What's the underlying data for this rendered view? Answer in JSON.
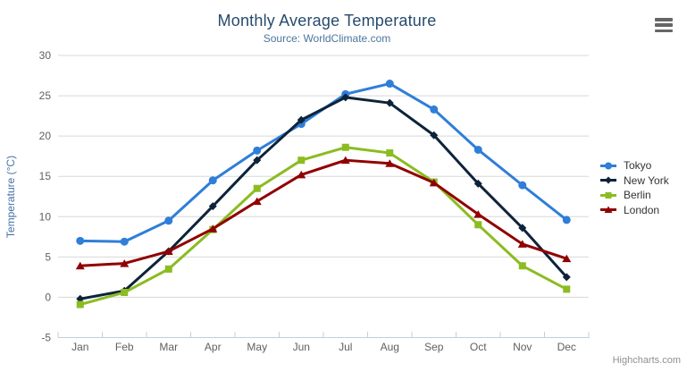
{
  "chart_data": {
    "type": "line",
    "title": "Monthly Average Temperature",
    "subtitle": "Source: WorldClimate.com",
    "xlabel": "",
    "ylabel": "Temperature (°C)",
    "categories": [
      "Jan",
      "Feb",
      "Mar",
      "Apr",
      "May",
      "Jun",
      "Jul",
      "Aug",
      "Sep",
      "Oct",
      "Nov",
      "Dec"
    ],
    "ylim": [
      -5,
      30
    ],
    "yticks": [
      -5,
      0,
      5,
      10,
      15,
      20,
      25,
      30
    ],
    "grid": true,
    "legend_position": "right",
    "gridline_color": "#d8d8d8",
    "axis_line_color": "#c0d0e0",
    "series": [
      {
        "name": "Tokyo",
        "color": "#2f7ed8",
        "marker": "circle",
        "values": [
          7.0,
          6.9,
          9.5,
          14.5,
          18.2,
          21.5,
          25.2,
          26.5,
          23.3,
          18.3,
          13.9,
          9.6
        ]
      },
      {
        "name": "New York",
        "color": "#0d233a",
        "marker": "diamond",
        "values": [
          -0.2,
          0.8,
          5.7,
          11.3,
          17.0,
          22.0,
          24.8,
          24.1,
          20.1,
          14.1,
          8.6,
          2.5
        ]
      },
      {
        "name": "Berlin",
        "color": "#8bbc21",
        "marker": "square",
        "values": [
          -0.9,
          0.6,
          3.5,
          8.4,
          13.5,
          17.0,
          18.6,
          17.9,
          14.3,
          9.0,
          3.9,
          1.0
        ]
      },
      {
        "name": "London",
        "color": "#910000",
        "marker": "triangle",
        "values": [
          3.9,
          4.2,
          5.7,
          8.5,
          11.9,
          15.2,
          17.0,
          16.6,
          14.2,
          10.3,
          6.6,
          4.8
        ]
      }
    ]
  },
  "export_menu": {
    "icon": "hamburger-icon"
  },
  "credits": {
    "label": "Highcharts.com"
  }
}
